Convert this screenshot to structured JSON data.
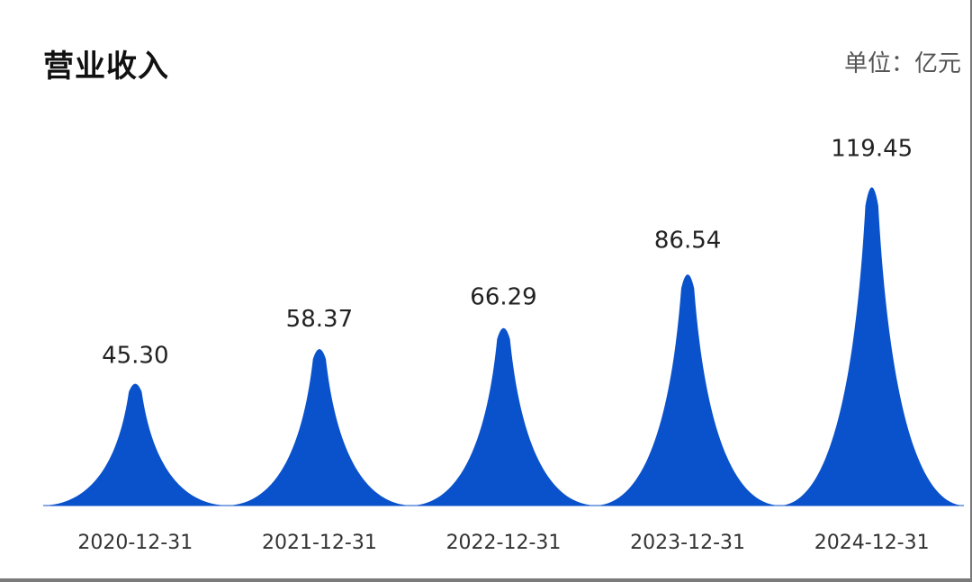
{
  "chart_data": {
    "type": "bar",
    "title": "营业收入",
    "unit_label": "单位：亿元",
    "categories": [
      "2020-12-31",
      "2021-12-31",
      "2022-12-31",
      "2023-12-31",
      "2024-12-31"
    ],
    "values": [
      45.3,
      58.37,
      66.29,
      86.54,
      119.45
    ],
    "value_labels": [
      "45.30",
      "58.37",
      "66.29",
      "86.54",
      "119.45"
    ],
    "bar_style": "pictorial-peak",
    "color": "#0a52cc",
    "xlabel": "",
    "ylabel": "",
    "grid": false,
    "legend": "none"
  }
}
